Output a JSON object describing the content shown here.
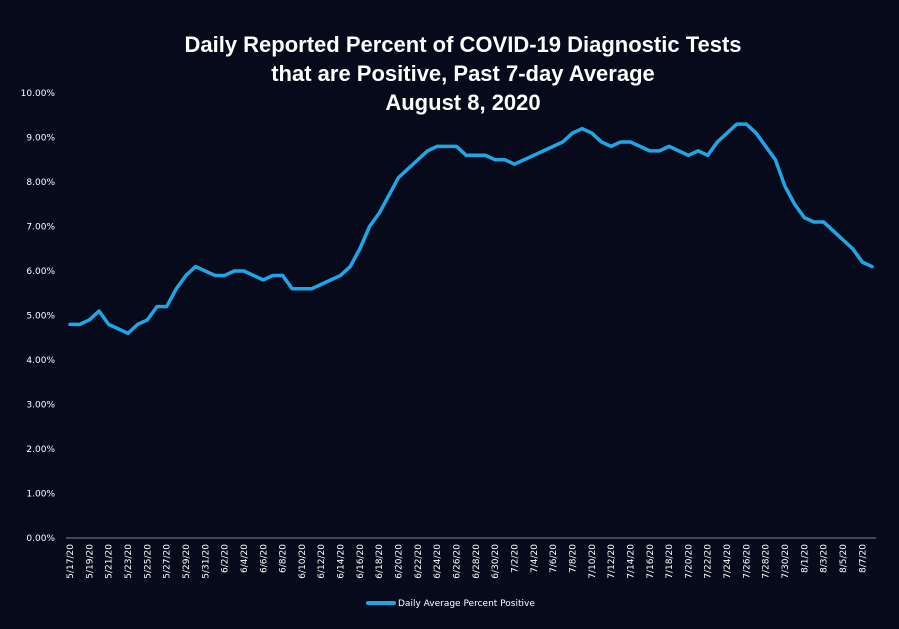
{
  "chart_data": {
    "type": "line",
    "title_lines": [
      "Daily Reported Percent of COVID-19 Diagnostic Tests",
      "that are Positive, Past 7-day Average",
      "August 8, 2020"
    ],
    "xlabel": "",
    "ylabel": "",
    "ylim": [
      0,
      10
    ],
    "ytick_labels": [
      "0.00%",
      "1.00%",
      "2.00%",
      "3.00%",
      "4.00%",
      "5.00%",
      "6.00%",
      "7.00%",
      "8.00%",
      "9.00%",
      "10.00%"
    ],
    "ytick_values": [
      0,
      1,
      2,
      3,
      4,
      5,
      6,
      7,
      8,
      9,
      10
    ],
    "xtick_labels": [
      "5/17/20",
      "5/19/20",
      "5/21/20",
      "5/23/20",
      "5/25/20",
      "5/27/20",
      "5/29/20",
      "5/31/20",
      "6/2/20",
      "6/4/20",
      "6/6/20",
      "6/8/20",
      "6/10/20",
      "6/12/20",
      "6/14/20",
      "6/16/20",
      "6/18/20",
      "6/20/20",
      "6/22/20",
      "6/24/20",
      "6/26/20",
      "6/28/20",
      "6/30/20",
      "7/2/20",
      "7/4/20",
      "7/6/20",
      "7/8/20",
      "7/10/20",
      "7/12/20",
      "7/14/20",
      "7/16/20",
      "7/18/20",
      "7/20/20",
      "7/22/20",
      "7/24/20",
      "7/26/20",
      "7/28/20",
      "7/30/20",
      "8/1/20",
      "8/3/20",
      "8/5/20",
      "8/7/20"
    ],
    "grid": false,
    "legend_position": "bottom-center",
    "series": [
      {
        "name": "Daily Average Percent Positive",
        "color": "#1ea7e6",
        "values": [
          4.8,
          4.8,
          4.9,
          5.1,
          4.8,
          4.7,
          4.6,
          4.8,
          4.9,
          5.2,
          5.2,
          5.6,
          5.9,
          6.1,
          6.0,
          5.9,
          5.9,
          6.0,
          6.0,
          5.9,
          5.8,
          5.9,
          5.9,
          5.6,
          5.6,
          5.6,
          5.7,
          5.8,
          5.9,
          6.1,
          6.5,
          7.0,
          7.3,
          7.7,
          8.1,
          8.3,
          8.5,
          8.7,
          8.8,
          8.8,
          8.8,
          8.6,
          8.6,
          8.6,
          8.5,
          8.5,
          8.4,
          8.5,
          8.6,
          8.7,
          8.8,
          8.9,
          9.1,
          9.2,
          9.1,
          8.9,
          8.8,
          8.9,
          8.9,
          8.8,
          8.7,
          8.7,
          8.8,
          8.7,
          8.6,
          8.7,
          8.6,
          8.9,
          9.1,
          9.3,
          9.3,
          9.1,
          8.8,
          8.5,
          7.9,
          7.5,
          7.2,
          7.1,
          7.1,
          6.9,
          6.7,
          6.5,
          6.2,
          6.1
        ]
      }
    ]
  }
}
